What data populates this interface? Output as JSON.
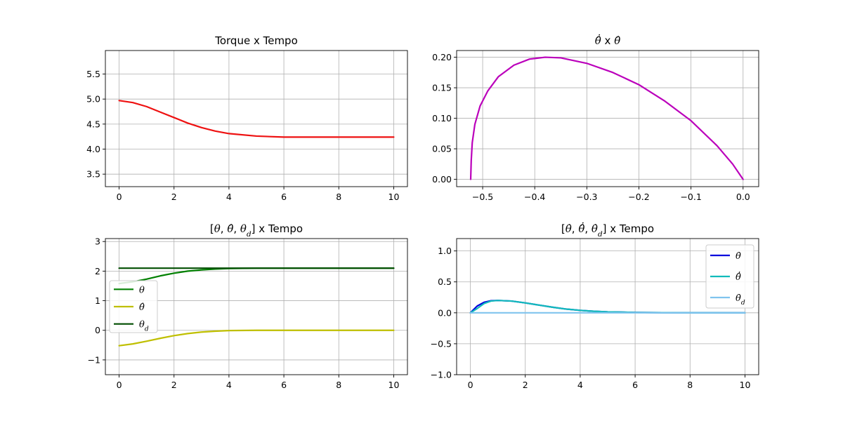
{
  "chart_data": [
    {
      "type": "line",
      "title": "Torque x Tempo",
      "title_parts": [
        {
          "text": "Torque x Tempo"
        }
      ],
      "xlim": [
        -0.5,
        10.5
      ],
      "ylim": [
        3.25,
        5.97
      ],
      "xticks": [
        0,
        2,
        4,
        6,
        8,
        10
      ],
      "yticks": [
        3.5,
        4.0,
        4.5,
        5.0,
        5.5
      ],
      "xtick_labels": [
        "0",
        "2",
        "4",
        "6",
        "8",
        "10"
      ],
      "ytick_labels": [
        "3.5",
        "4.0",
        "4.5",
        "5.0",
        "5.5"
      ],
      "grid": true,
      "legend": null,
      "series": [
        {
          "color": "#ee1111",
          "x": [
            0,
            0.5,
            1,
            1.5,
            2,
            2.5,
            3,
            3.5,
            4,
            5,
            6,
            7,
            8,
            9,
            10
          ],
          "y": [
            4.97,
            4.93,
            4.85,
            4.74,
            4.63,
            4.52,
            4.43,
            4.36,
            4.31,
            4.26,
            4.24,
            4.24,
            4.24,
            4.24,
            4.24
          ]
        }
      ]
    },
    {
      "type": "line",
      "title": "θ̂̇ x θ̂",
      "title_parts": [
        {
          "text": "θ̂̇",
          "italic": true
        },
        {
          "text": " x "
        },
        {
          "text": "θ̂",
          "italic": true
        }
      ],
      "xlim": [
        -0.55,
        0.03
      ],
      "ylim": [
        -0.012,
        0.211
      ],
      "xticks": [
        -0.5,
        -0.4,
        -0.3,
        -0.2,
        -0.1,
        0.0
      ],
      "yticks": [
        0.0,
        0.05,
        0.1,
        0.15,
        0.2
      ],
      "xtick_labels": [
        "−0.5",
        "−0.4",
        "−0.3",
        "−0.2",
        "−0.1",
        "0.0"
      ],
      "ytick_labels": [
        "0.00",
        "0.05",
        "0.10",
        "0.15",
        "0.20"
      ],
      "grid": true,
      "legend": null,
      "series": [
        {
          "color": "#bb00bb",
          "x": [
            -0.523,
            -0.522,
            -0.52,
            -0.515,
            -0.505,
            -0.49,
            -0.47,
            -0.44,
            -0.41,
            -0.38,
            -0.35,
            -0.3,
            -0.25,
            -0.2,
            -0.15,
            -0.1,
            -0.05,
            -0.02,
            0.0
          ],
          "y": [
            0.0,
            0.03,
            0.06,
            0.09,
            0.12,
            0.145,
            0.168,
            0.187,
            0.197,
            0.2,
            0.199,
            0.19,
            0.175,
            0.155,
            0.128,
            0.096,
            0.055,
            0.025,
            0.0
          ]
        }
      ]
    },
    {
      "type": "line",
      "title": "[θ, θ̂, θ_d] x Tempo",
      "title_parts": [
        {
          "text": "["
        },
        {
          "text": "θ",
          "italic": true
        },
        {
          "text": ", "
        },
        {
          "text": "θ̂",
          "italic": true
        },
        {
          "text": ", "
        },
        {
          "text": "θ",
          "italic": true
        },
        {
          "text": "d",
          "italic": true,
          "sub": true
        },
        {
          "text": "] x Tempo"
        }
      ],
      "xlim": [
        -0.5,
        10.5
      ],
      "ylim": [
        -1.5,
        3.1
      ],
      "xticks": [
        0,
        2,
        4,
        6,
        8,
        10
      ],
      "yticks": [
        -1,
        0,
        1,
        2,
        3
      ],
      "xtick_labels": [
        "0",
        "2",
        "4",
        "6",
        "8",
        "10"
      ],
      "ytick_labels": [
        "−1",
        "0",
        "1",
        "2",
        "3"
      ],
      "grid": true,
      "legend": "center-left",
      "series": [
        {
          "name": "θ",
          "label_parts": [
            {
              "text": "θ",
              "italic": true
            }
          ],
          "color": "#008000",
          "x": [
            0,
            0.5,
            1,
            1.5,
            2,
            2.5,
            3,
            3.5,
            4,
            5,
            6,
            8,
            10
          ],
          "y": [
            1.58,
            1.64,
            1.73,
            1.84,
            1.93,
            2.0,
            2.04,
            2.07,
            2.09,
            2.1,
            2.1,
            2.1,
            2.1
          ]
        },
        {
          "name": "θ̂",
          "label_parts": [
            {
              "text": "θ̂",
              "italic": true
            }
          ],
          "color": "#bfbf00",
          "x": [
            0,
            0.5,
            1,
            1.5,
            2,
            2.5,
            3,
            3.5,
            4,
            5,
            6,
            8,
            10
          ],
          "y": [
            -0.52,
            -0.46,
            -0.37,
            -0.27,
            -0.18,
            -0.11,
            -0.06,
            -0.03,
            -0.01,
            0.0,
            0.0,
            0.0,
            0.0
          ]
        },
        {
          "name": "θd",
          "label_parts": [
            {
              "text": "θ",
              "italic": true
            },
            {
              "text": "d",
              "italic": true,
              "sub": true
            }
          ],
          "color": "#004d00",
          "x": [
            0,
            10
          ],
          "y": [
            2.1,
            2.1
          ]
        }
      ]
    },
    {
      "type": "line",
      "title": "[θ̇, θ̂̇, θ̇_d] x Tempo",
      "title_parts": [
        {
          "text": "["
        },
        {
          "text": "θ̇",
          "italic": true
        },
        {
          "text": ", "
        },
        {
          "text": "θ̂̇",
          "italic": true
        },
        {
          "text": ", "
        },
        {
          "text": "θ̇",
          "italic": true
        },
        {
          "text": "d",
          "italic": true,
          "sub": true
        },
        {
          "text": "] x Tempo"
        }
      ],
      "xlim": [
        -0.5,
        10.5
      ],
      "ylim": [
        -1.0,
        1.2
      ],
      "xticks": [
        0,
        2,
        4,
        6,
        8,
        10
      ],
      "yticks": [
        -1.0,
        -0.5,
        0.0,
        0.5,
        1.0
      ],
      "xtick_labels": [
        "0",
        "2",
        "4",
        "6",
        "8",
        "10"
      ],
      "ytick_labels": [
        "−1.0",
        "−0.5",
        "0.0",
        "0.5",
        "1.0"
      ],
      "grid": true,
      "legend": "top-right",
      "series": [
        {
          "name": "θ̇",
          "label_parts": [
            {
              "text": "θ̇",
              "italic": true
            }
          ],
          "color": "#0000dd",
          "x": [
            0,
            0.25,
            0.5,
            0.75,
            1,
            1.5,
            2,
            2.5,
            3,
            3.5,
            4,
            4.5,
            5,
            6,
            7,
            8,
            10
          ],
          "y": [
            0.0,
            0.11,
            0.17,
            0.195,
            0.2,
            0.19,
            0.16,
            0.125,
            0.09,
            0.06,
            0.04,
            0.025,
            0.015,
            0.006,
            0.002,
            0.001,
            0.0
          ]
        },
        {
          "name": "θ̂̇",
          "label_parts": [
            {
              "text": "θ̂̇",
              "italic": true
            }
          ],
          "color": "#11bbbb",
          "x": [
            0,
            0.25,
            0.5,
            0.75,
            1,
            1.5,
            2,
            2.5,
            3,
            3.5,
            4,
            4.5,
            5,
            6,
            7,
            8,
            10
          ],
          "y": [
            0.0,
            0.07,
            0.15,
            0.19,
            0.2,
            0.19,
            0.16,
            0.125,
            0.09,
            0.06,
            0.04,
            0.025,
            0.015,
            0.006,
            0.002,
            0.001,
            0.0
          ]
        },
        {
          "name": "θ̇d",
          "label_parts": [
            {
              "text": "θ̇",
              "italic": true
            },
            {
              "text": "d",
              "italic": true,
              "sub": true
            }
          ],
          "color": "#80c4ee",
          "x": [
            0,
            10
          ],
          "y": [
            0.0,
            0.0
          ]
        }
      ]
    }
  ]
}
